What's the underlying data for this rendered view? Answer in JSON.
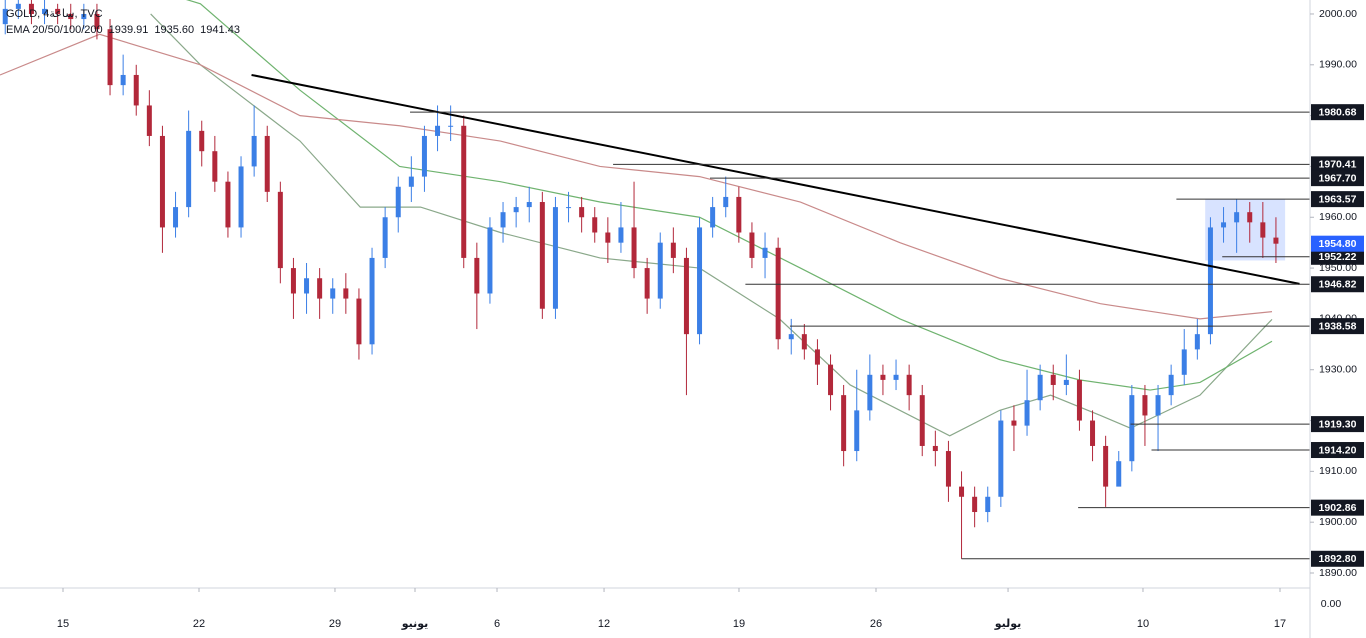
{
  "chart_data": {
    "type": "candlestick",
    "title": "GOLD, 4ساعة, TVC",
    "legend": {
      "text": "EMA 20/50/100/200",
      "values": [
        1939.91,
        {
          "value": 1935.6,
          "label": "1935.60"
        },
        1941.43
      ]
    },
    "up_color": "#3b7fe6",
    "down_color": "#b2283a",
    "xlim": [
      -0.4,
      99.6
    ],
    "ylim": [
      1887.05,
      2002.75
    ],
    "xticks": [
      {
        "value": 4.41,
        "label": "15"
      },
      {
        "value": 14.79,
        "label": "22"
      },
      {
        "value": 25.17,
        "label": "29"
      },
      {
        "value": 31.28,
        "label": "يونيو"
      },
      {
        "value": 37.54,
        "label": "6"
      },
      {
        "value": 45.71,
        "label": "12"
      },
      {
        "value": 56.01,
        "label": "19"
      },
      {
        "value": 66.47,
        "label": "26"
      },
      {
        "value": 76.55,
        "label": "يوليو"
      },
      {
        "value": 86.85,
        "label": "10"
      },
      {
        "value": 97.31,
        "label": "17"
      }
    ],
    "yticks": [
      {
        "value": 2000,
        "label": "2000.00"
      },
      {
        "value": 1990,
        "label": "1990.00"
      },
      {
        "value": 1980,
        "label": "1980.00"
      },
      {
        "value": 1970,
        "label": "1970.00"
      },
      {
        "value": 1960,
        "label": "1960.00"
      },
      {
        "value": 1950,
        "label": "1950.00"
      },
      {
        "value": 1940,
        "label": "1940.00"
      },
      {
        "value": 1930,
        "label": "1930.00"
      },
      {
        "value": 1920,
        "label": "1920.00"
      },
      {
        "value": 1910,
        "label": "1910.00"
      },
      {
        "value": 1900,
        "label": "1900.00"
      },
      {
        "value": 1890,
        "label": "1890.00"
      }
    ],
    "volume_axis_label": {
      "value": 0,
      "label": "0.00"
    },
    "candles": {
      "x": [
        0,
        1,
        2,
        3,
        4,
        5,
        6,
        7,
        8,
        9,
        10,
        11,
        12,
        13,
        14,
        15,
        16,
        17,
        18,
        19,
        20,
        21,
        22,
        23,
        24,
        25,
        26,
        27,
        28,
        29,
        30,
        31,
        32,
        33,
        34,
        35,
        36,
        37,
        38,
        39,
        40,
        41,
        42,
        43,
        44,
        45,
        46,
        47,
        48,
        49,
        50,
        51,
        52,
        53,
        54,
        55,
        56,
        57,
        58,
        59,
        60,
        61,
        62,
        63,
        64,
        65,
        66,
        67,
        68,
        69,
        70,
        71,
        72,
        73,
        74,
        75,
        76,
        77,
        78,
        79,
        80,
        81,
        82,
        83,
        84,
        85,
        86,
        87,
        88,
        89,
        90,
        91,
        92,
        93,
        94,
        95,
        96,
        97
      ],
      "open": [
        1998,
        2001,
        2002,
        2000,
        2001,
        2000,
        1999,
        2000,
        1997,
        1986,
        1988,
        1982,
        1976,
        1958,
        1962,
        1977,
        1973,
        1967,
        1958,
        1970,
        1976,
        1965,
        1950,
        1945,
        1948,
        1944,
        1946,
        1944,
        1935,
        1952,
        1960,
        1966,
        1968,
        1976,
        1978,
        1978,
        1952,
        1945,
        1958,
        1961,
        1962,
        1963,
        1942,
        1962,
        1962,
        1960,
        1957,
        1955,
        1958,
        1950,
        1944,
        1955,
        1952,
        1937,
        1958,
        1962,
        1964,
        1957,
        1952,
        1954,
        1936,
        1937,
        1934,
        1931,
        1925,
        1914,
        1922,
        1929,
        1928,
        1929,
        1925,
        1915,
        1914,
        1907,
        1905,
        1902,
        1905,
        1920,
        1919,
        1924,
        1929,
        1927,
        1928,
        1920,
        1915,
        1907,
        1912,
        1925,
        1921,
        1925,
        1929,
        1934,
        1937,
        1958,
        1959,
        1961,
        1959,
        1956
      ],
      "high": [
        2003,
        2004,
        2003,
        2003,
        2002,
        2002,
        2002,
        2002,
        1999,
        1992,
        1990,
        1985,
        1978,
        1965,
        1981,
        1979,
        1976,
        1969,
        1972,
        1982,
        1978,
        1967,
        1952,
        1951,
        1950,
        1948,
        1949,
        1946,
        1954,
        1962,
        1968,
        1972,
        1978,
        1982,
        1982,
        1980,
        1955,
        1960,
        1963,
        1964,
        1966,
        1965,
        1964,
        1965,
        1964,
        1962,
        1960,
        1963,
        1967,
        1952,
        1957,
        1958,
        1954,
        1960,
        1964,
        1968,
        1966,
        1959,
        1957,
        1956,
        1940,
        1939,
        1936,
        1933,
        1927,
        1930,
        1933,
        1931,
        1932,
        1931,
        1927,
        1918,
        1916,
        1910,
        1907,
        1907,
        1922,
        1923,
        1930,
        1931,
        1931,
        1933,
        1930,
        1922,
        1917,
        1914,
        1927,
        1927,
        1927,
        1931,
        1938,
        1940,
        1960,
        1962,
        1963.6,
        1963,
        1963,
        1960
      ],
      "low": [
        1996,
        1999,
        1998,
        1998,
        1998,
        1997,
        1997,
        1995,
        1984,
        1984,
        1980,
        1974,
        1953,
        1956,
        1960,
        1970,
        1965,
        1956,
        1956,
        1968,
        1963,
        1947,
        1940,
        1941,
        1940,
        1941,
        1941,
        1932,
        1933,
        1950,
        1957,
        1963,
        1965,
        1973,
        1975,
        1950,
        1938,
        1943,
        1955,
        1958,
        1959,
        1940,
        1940,
        1959,
        1957,
        1955,
        1951,
        1953,
        1948,
        1941,
        1942,
        1949,
        1925,
        1935,
        1956,
        1960,
        1955,
        1950,
        1948,
        1934,
        1933,
        1932,
        1927,
        1922,
        1911,
        1912,
        1920,
        1925,
        1926,
        1922,
        1913,
        1911,
        1904,
        1892.8,
        1899,
        1900,
        1903,
        1914,
        1917,
        1922,
        1924,
        1925,
        1918,
        1912,
        1903,
        1909,
        1910,
        1915,
        1914,
        1923,
        1927,
        1932,
        1935,
        1955,
        1953,
        1955,
        1952,
        1951
      ],
      "close": [
        2001,
        2002,
        2000,
        2001,
        2000,
        1999,
        2000,
        1997,
        1986,
        1988,
        1982,
        1976,
        1958,
        1962,
        1977,
        1973,
        1967,
        1958,
        1970,
        1976,
        1965,
        1950,
        1945,
        1948,
        1944,
        1946,
        1944,
        1935,
        1952,
        1960,
        1966,
        1968,
        1976,
        1978,
        1978,
        1952,
        1945,
        1958,
        1961,
        1962,
        1963,
        1942,
        1962,
        1962,
        1960,
        1957,
        1955,
        1958,
        1950,
        1944,
        1955,
        1952,
        1937,
        1958,
        1962,
        1964,
        1957,
        1952,
        1954,
        1936,
        1937,
        1934,
        1931,
        1925,
        1914,
        1922,
        1929,
        1928,
        1929,
        1925,
        1915,
        1914,
        1907,
        1905,
        1902,
        1905,
        1920,
        1919,
        1924,
        1929,
        1927,
        1928,
        1920,
        1915,
        1907,
        1912,
        1925,
        1921,
        1925,
        1929,
        1934,
        1937,
        1958,
        1959,
        1961,
        1959,
        1956,
        1954.8
      ]
    },
    "series": [
      {
        "color": "#8aa88a",
        "x": [
          11.1,
          14.9,
          22.5,
          27.1,
          31.7,
          37.8,
          45.4,
          53.0,
          59.1,
          64.5,
          72.1,
          75.9,
          79.8,
          83.6,
          85.9,
          91.2,
          96.7
        ],
        "values": [
          2000,
          1990,
          1975,
          1962,
          1962,
          1957,
          1952,
          1950,
          1940,
          1927,
          1917,
          1922,
          1925,
          1921,
          1918.5,
          1925,
          1939.91
        ]
      },
      {
        "color": "#6fb36f",
        "x": [
          11.1,
          14.9,
          22.5,
          30.1,
          37.8,
          45.4,
          53.0,
          60.7,
          68.3,
          75.9,
          82.0,
          87.4,
          91.2,
          96.7
        ],
        "values": [
          2005,
          2002,
          1985,
          1970,
          1967,
          1963,
          1960,
          1950,
          1940,
          1932,
          1928,
          1926,
          1927.5,
          1935.6
        ]
      },
      {
        "color": "#c98a8a",
        "x": [
          -0.4,
          7.2,
          14.9,
          22.5,
          30.1,
          37.8,
          45.4,
          53.0,
          60.7,
          68.3,
          75.9,
          83.6,
          91.2,
          96.7
        ],
        "values": [
          1988,
          1996,
          1990,
          1980,
          1978,
          1975,
          1970,
          1968,
          1963,
          1955,
          1948,
          1943,
          1940,
          1941.43
        ]
      }
    ],
    "trendline": {
      "x": [
        18.8,
        98.8
      ],
      "y": [
        1988.0,
        1946.9
      ]
    },
    "range_box": {
      "x": [
        91.6,
        97.7
      ],
      "y": [
        1963.57,
        1951.5
      ]
    },
    "levels": [
      {
        "price": 1980.68,
        "start_x": 30.9
      },
      {
        "price": 1970.41,
        "start_x": 46.4
      },
      {
        "price": {
          "value": 1967.7,
          "label": "1967.70"
        },
        "start_x": 53.8
      },
      {
        "price": 1963.57,
        "start_x": 89.4
      },
      {
        "price": 1952.22,
        "start_x": 92.9
      },
      {
        "price": 1946.82,
        "start_x": 56.5
      },
      {
        "price": 1938.58,
        "start_x": 59.9
      },
      {
        "price": {
          "value": 1919.3,
          "label": "1919.30"
        },
        "start_x": 85.9
      },
      {
        "price": {
          "value": 1914.2,
          "label": "1914.20"
        },
        "start_x": 87.5
      },
      {
        "price": 1902.86,
        "start_x": 81.9
      },
      {
        "price": {
          "value": 1892.8,
          "label": "1892.80"
        },
        "start_x": 73.0
      }
    ],
    "current_price": {
      "value": 1954.8,
      "label": "1954.80"
    },
    "current_price_color": "#2962ff"
  }
}
